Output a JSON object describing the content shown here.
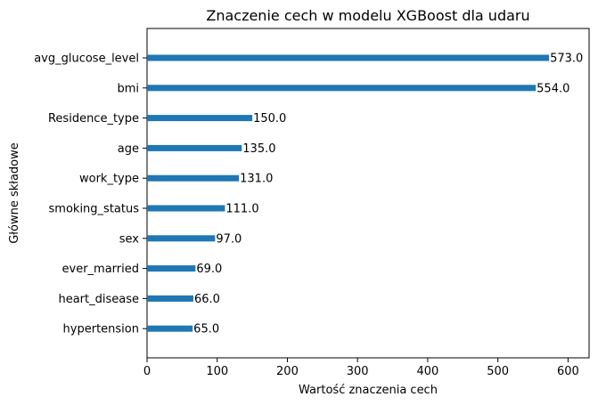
{
  "chart_data": {
    "type": "bar",
    "orientation": "horizontal",
    "title": "Znaczenie cech w modelu XGBoost dla udaru",
    "xlabel": "Wartość znaczenia cech",
    "ylabel": "Główne składowe",
    "categories": [
      "avg_glucose_level",
      "bmi",
      "Residence_type",
      "age",
      "work_type",
      "smoking_status",
      "sex",
      "ever_married",
      "heart_disease",
      "hypertension"
    ],
    "values": [
      573.0,
      554.0,
      150.0,
      135.0,
      131.0,
      111.0,
      97.0,
      69.0,
      66.0,
      65.0
    ],
    "data_labels": [
      "573.0",
      "554.0",
      "150.0",
      "135.0",
      "131.0",
      "111.0",
      "97.0",
      "69.0",
      "66.0",
      "65.0"
    ],
    "xlim": [
      0,
      630
    ],
    "xticks": [
      0,
      100,
      200,
      300,
      400,
      500,
      600
    ],
    "xtick_labels": [
      "0",
      "100",
      "200",
      "300",
      "400",
      "500",
      "600"
    ],
    "grid": false,
    "legend": "none",
    "bar_color": "#1f77b4"
  }
}
